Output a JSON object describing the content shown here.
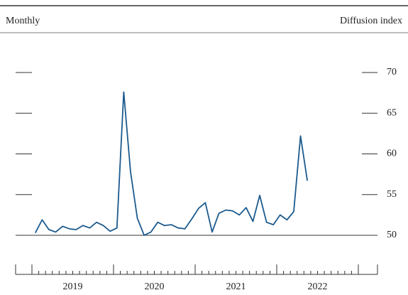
{
  "chart_data": {
    "type": "line",
    "left_label": "Monthly",
    "right_label": "Diffusion index",
    "years": [
      "2019",
      "2020",
      "2021",
      "2022"
    ],
    "series": [
      {
        "color": "#1b5a8e",
        "values": [
          50.3,
          51.9,
          50.7,
          50.4,
          51.1,
          50.8,
          50.7,
          51.2,
          50.9,
          51.6,
          51.2,
          50.5,
          50.9,
          67.6,
          57.8,
          52.1,
          50.0,
          50.4,
          51.6,
          51.2,
          51.3,
          50.9,
          50.8,
          52.0,
          53.3,
          54.0,
          50.4,
          52.7,
          53.1,
          53.0,
          52.5,
          53.4,
          51.7,
          54.9,
          51.6,
          51.3,
          52.5,
          51.9,
          52.9,
          62.2,
          56.7
        ]
      }
    ],
    "ylim": [
      50,
      70
    ],
    "yticks": [
      50,
      55,
      60,
      65,
      70
    ]
  }
}
